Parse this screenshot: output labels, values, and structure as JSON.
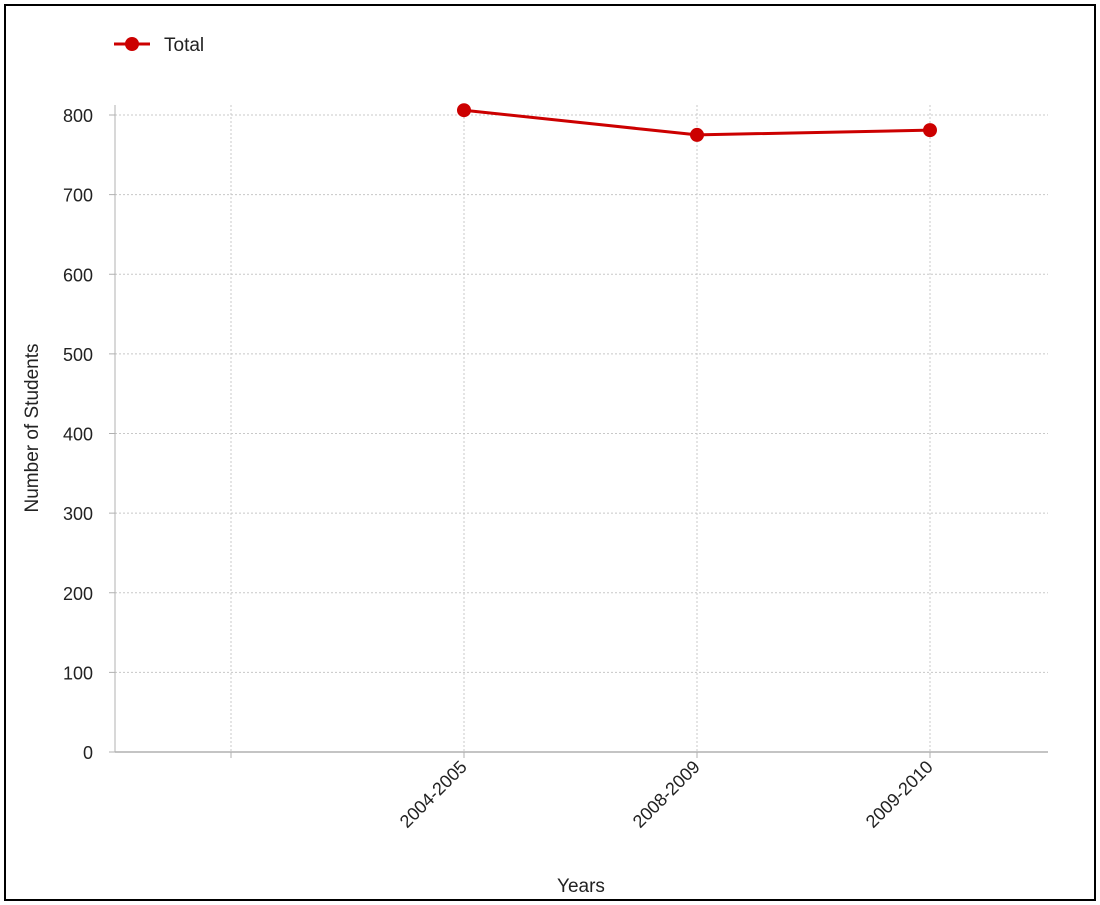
{
  "chart_data": {
    "type": "line",
    "title": "",
    "xlabel": "Years",
    "ylabel": "Number of Students",
    "categories": [
      "",
      "2004-2005",
      "2008-2009",
      "2009-2010"
    ],
    "series": [
      {
        "name": "Total",
        "color": "#cc0000",
        "values": [
          null,
          806,
          775,
          781
        ]
      }
    ],
    "ylim": [
      0,
      800
    ],
    "yticks": [
      0,
      100,
      200,
      300,
      400,
      500,
      600,
      700,
      800
    ],
    "grid": true,
    "legend_position": "top-left"
  }
}
